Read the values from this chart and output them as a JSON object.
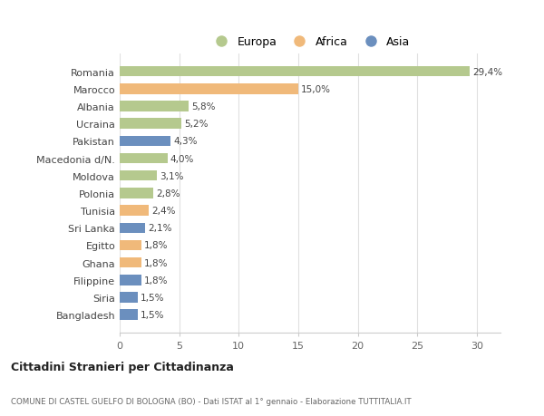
{
  "countries": [
    "Romania",
    "Marocco",
    "Albania",
    "Ucraina",
    "Pakistan",
    "Macedonia d/N.",
    "Moldova",
    "Polonia",
    "Tunisia",
    "Sri Lanka",
    "Egitto",
    "Ghana",
    "Filippine",
    "Siria",
    "Bangladesh"
  ],
  "values": [
    29.4,
    15.0,
    5.8,
    5.2,
    4.3,
    4.0,
    3.1,
    2.8,
    2.4,
    2.1,
    1.8,
    1.8,
    1.8,
    1.5,
    1.5
  ],
  "continents": [
    "Europa",
    "Africa",
    "Europa",
    "Europa",
    "Asia",
    "Europa",
    "Europa",
    "Europa",
    "Africa",
    "Asia",
    "Africa",
    "Africa",
    "Asia",
    "Asia",
    "Asia"
  ],
  "colors": {
    "Europa": "#b5c98e",
    "Africa": "#f0b97a",
    "Asia": "#6b8fbe"
  },
  "labels": [
    "29,4%",
    "15,0%",
    "5,8%",
    "5,2%",
    "4,3%",
    "4,0%",
    "3,1%",
    "2,8%",
    "2,4%",
    "2,1%",
    "1,8%",
    "1,8%",
    "1,8%",
    "1,5%",
    "1,5%"
  ],
  "title": "Cittadini Stranieri per Cittadinanza",
  "subtitle": "COMUNE DI CASTEL GUELFO DI BOLOGNA (BO) - Dati ISTAT al 1° gennaio - Elaborazione TUTTITALIA.IT",
  "xlim": [
    0,
    32
  ],
  "xticks": [
    0,
    5,
    10,
    15,
    20,
    25,
    30
  ],
  "bg_color": "#ffffff",
  "grid_color": "#e0e0e0",
  "bar_height": 0.6
}
